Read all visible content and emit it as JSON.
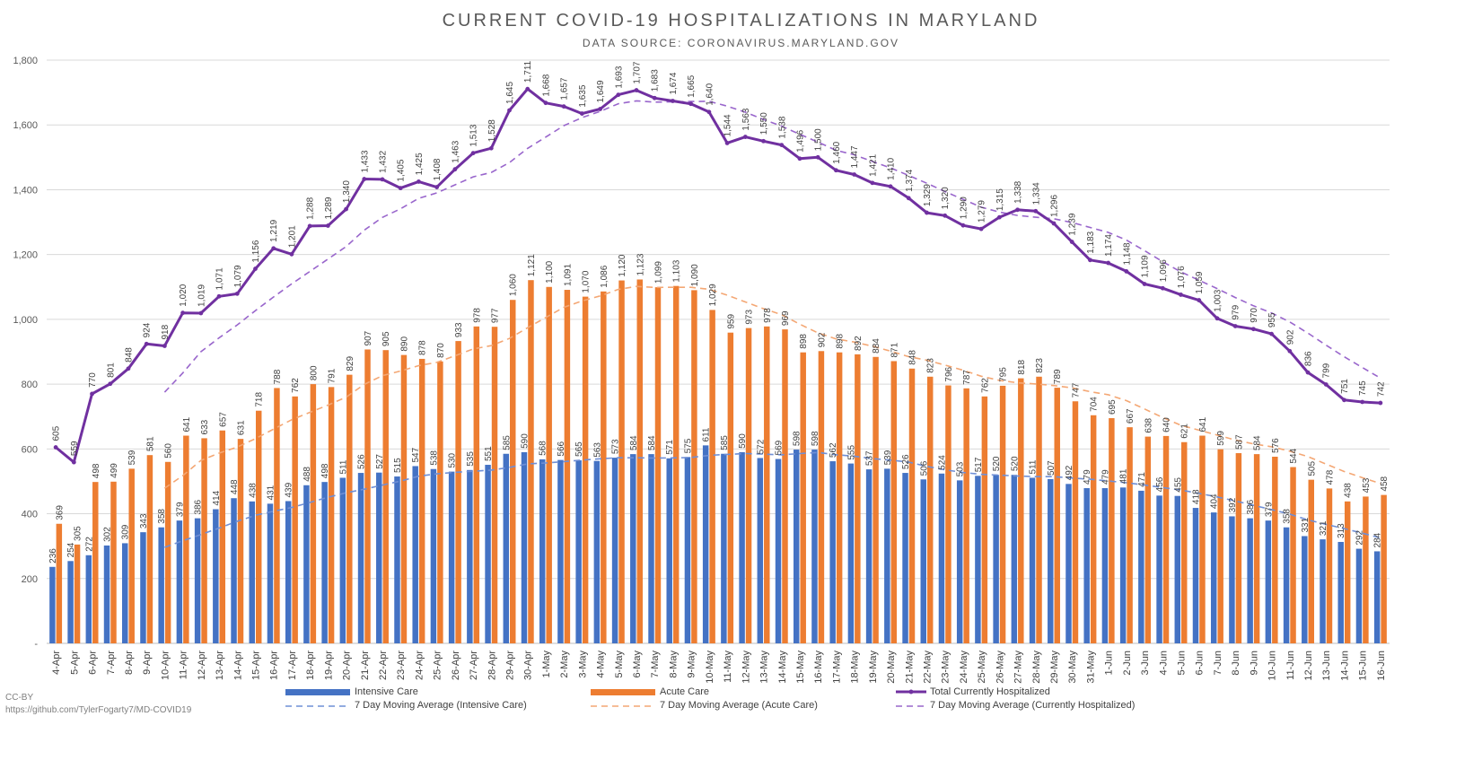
{
  "chart_data": {
    "type": "bar",
    "title": "CURRENT COVID-19 HOSPITALIZATIONS IN MARYLAND",
    "subtitle": "DATA SOURCE: CORONAVIRUS.MARYLAND.GOV",
    "ylim": [
      0,
      1800
    ],
    "yticks": [
      0,
      200,
      400,
      600,
      800,
      1000,
      1200,
      1400,
      1600,
      1800
    ],
    "ytick_labels": [
      "-",
      "200",
      "400",
      "600",
      "800",
      "1,000",
      "1,200",
      "1,400",
      "1,600",
      "1,800"
    ],
    "grid": "horizontal",
    "legend_position": "bottom",
    "categories": [
      "4-Apr",
      "5-Apr",
      "6-Apr",
      "7-Apr",
      "8-Apr",
      "9-Apr",
      "10-Apr",
      "11-Apr",
      "12-Apr",
      "13-Apr",
      "14-Apr",
      "15-Apr",
      "16-Apr",
      "17-Apr",
      "18-Apr",
      "19-Apr",
      "20-Apr",
      "21-Apr",
      "22-Apr",
      "23-Apr",
      "24-Apr",
      "25-Apr",
      "26-Apr",
      "27-Apr",
      "28-Apr",
      "29-Apr",
      "30-Apr",
      "1-May",
      "2-May",
      "3-May",
      "4-May",
      "5-May",
      "6-May",
      "7-May",
      "8-May",
      "9-May",
      "10-May",
      "11-May",
      "12-May",
      "13-May",
      "14-May",
      "15-May",
      "16-May",
      "17-May",
      "18-May",
      "19-May",
      "20-May",
      "21-May",
      "22-May",
      "23-May",
      "24-May",
      "25-May",
      "26-May",
      "27-May",
      "28-May",
      "29-May",
      "30-May",
      "31-May",
      "1-Jun",
      "2-Jun",
      "3-Jun",
      "4-Jun",
      "5-Jun",
      "6-Jun",
      "7-Jun",
      "8-Jun",
      "9-Jun",
      "10-Jun",
      "11-Jun",
      "12-Jun",
      "13-Jun",
      "14-Jun",
      "15-Jun",
      "16-Jun"
    ],
    "series": [
      {
        "name": "Intensive Care",
        "kind": "bar",
        "color": "#4472c4",
        "values": [
          236,
          254,
          272,
          302,
          309,
          343,
          358,
          379,
          386,
          414,
          448,
          438,
          431,
          439,
          488,
          498,
          511,
          526,
          527,
          515,
          547,
          538,
          530,
          535,
          551,
          585,
          590,
          568,
          566,
          565,
          563,
          573,
          584,
          584,
          571,
          575,
          611,
          585,
          590,
          572,
          569,
          598,
          598,
          562,
          555,
          537,
          539,
          526,
          506,
          524,
          503,
          517,
          520,
          520,
          511,
          507,
          492,
          479,
          479,
          481,
          471,
          456,
          455,
          418,
          404,
          392,
          386,
          379,
          358,
          331,
          321,
          313,
          292,
          284
        ]
      },
      {
        "name": "Acute Care",
        "kind": "bar",
        "color": "#ed7d31",
        "values": [
          369,
          305,
          498,
          499,
          539,
          581,
          560,
          641,
          633,
          657,
          631,
          718,
          788,
          762,
          800,
          791,
          829,
          907,
          905,
          890,
          878,
          870,
          933,
          978,
          977,
          1060,
          1121,
          1100,
          1091,
          1070,
          1086,
          1120,
          1123,
          1099,
          1103,
          1090,
          1029,
          959,
          973,
          978,
          969,
          898,
          902,
          898,
          892,
          884,
          871,
          848,
          823,
          796,
          787,
          762,
          795,
          818,
          823,
          789,
          747,
          704,
          695,
          667,
          638,
          640,
          621,
          641,
          599,
          587,
          584,
          576,
          544,
          505,
          478,
          438,
          453,
          458
        ]
      },
      {
        "name": "Total Currently Hospitalized",
        "kind": "line",
        "color": "#7030a0",
        "values": [
          605,
          559,
          770,
          801,
          848,
          924,
          918,
          1020,
          1019,
          1071,
          1079,
          1156,
          1219,
          1201,
          1288,
          1289,
          1340,
          1433,
          1432,
          1405,
          1425,
          1408,
          1463,
          1513,
          1528,
          1645,
          1711,
          1668,
          1657,
          1635,
          1649,
          1693,
          1707,
          1683,
          1674,
          1665,
          1640,
          1544,
          1563,
          1550,
          1538,
          1496,
          1500,
          1460,
          1447,
          1421,
          1410,
          1374,
          1329,
          1320,
          1290,
          1279,
          1315,
          1338,
          1334,
          1296,
          1239,
          1183,
          1174,
          1148,
          1109,
          1096,
          1076,
          1059,
          1003,
          979,
          970,
          955,
          902,
          836,
          799,
          751,
          745,
          742
        ]
      }
    ],
    "legend": [
      {
        "label": "Intensive Care",
        "style": "bar",
        "color": "#4472c4"
      },
      {
        "label": "Acute Care",
        "style": "bar",
        "color": "#ed7d31"
      },
      {
        "label": "Total Currently Hospitalized",
        "style": "line-marker",
        "color": "#7030a0"
      },
      {
        "label": "7 Day Moving Average (Intensive Care)",
        "style": "dashed",
        "color": "#6f8fd6"
      },
      {
        "label": "7 Day Moving Average (Acute Care)",
        "style": "dashed",
        "color": "#f4a774"
      },
      {
        "label": "7 Day Moving Average (Currently Hospitalized)",
        "style": "dashed",
        "color": "#9966cc"
      }
    ]
  },
  "credits": {
    "license": "CC-BY",
    "url": "https://github.com/TylerFogarty7/MD-COVID19"
  }
}
